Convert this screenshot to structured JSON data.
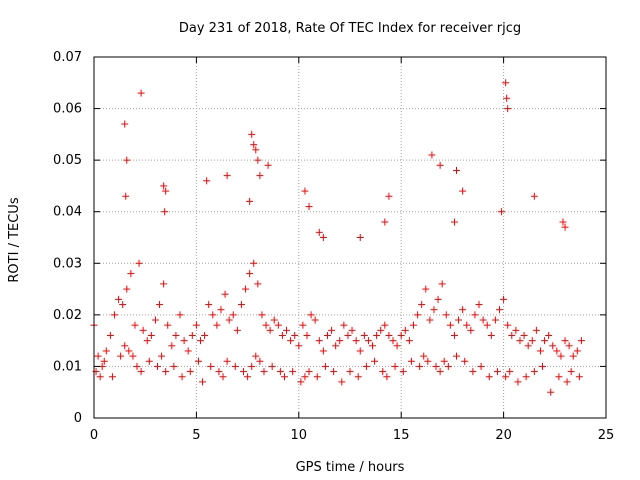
{
  "chart_data": {
    "type": "scatter",
    "title": "Day 231 of 2018, Rate Of TEC Index for receiver rjcg",
    "xlabel": "GPS time / hours",
    "ylabel": "ROTI / TECUs",
    "xlim": [
      0,
      25
    ],
    "ylim": [
      0,
      0.07
    ],
    "xticks": [
      0,
      5,
      10,
      15,
      20,
      25
    ],
    "xtick_labels": [
      "0",
      "5",
      "10",
      "15",
      "20",
      "25"
    ],
    "yticks": [
      0,
      0.01,
      0.02,
      0.03,
      0.04,
      0.05,
      0.06,
      0.07
    ],
    "ytick_labels": [
      "0",
      "0.01",
      "0.02",
      "0.03",
      "0.04",
      "0.05",
      "0.06",
      "0.07"
    ],
    "grid": true,
    "marker": "+",
    "color": "#ff0000",
    "series": [
      {
        "name": "ROTI",
        "x": [
          0.0,
          0.2,
          0.4,
          0.6,
          0.8,
          1.0,
          1.2,
          1.4,
          1.6,
          1.8,
          2.0,
          2.2,
          2.4,
          2.6,
          2.8,
          3.0,
          3.2,
          3.4,
          3.6,
          3.8,
          4.0,
          4.2,
          4.4,
          4.6,
          4.8,
          5.0,
          5.2,
          5.4,
          5.6,
          5.8,
          6.0,
          6.2,
          6.4,
          6.6,
          6.8,
          7.0,
          7.2,
          7.4,
          7.6,
          7.8,
          8.0,
          8.2,
          8.4,
          8.6,
          8.8,
          9.0,
          9.2,
          9.4,
          9.6,
          9.8,
          10.0,
          10.2,
          10.4,
          10.6,
          10.8,
          11.0,
          11.2,
          11.4,
          11.6,
          11.8,
          12.0,
          12.2,
          12.4,
          12.6,
          12.8,
          13.0,
          13.2,
          13.4,
          13.6,
          13.8,
          14.0,
          14.2,
          14.4,
          14.6,
          14.8,
          15.0,
          15.2,
          15.4,
          15.6,
          15.8,
          16.0,
          16.2,
          16.4,
          16.6,
          16.8,
          17.0,
          17.2,
          17.4,
          17.6,
          17.8,
          18.0,
          18.2,
          18.4,
          18.6,
          18.8,
          19.0,
          19.2,
          19.4,
          19.6,
          19.8,
          20.0,
          20.2,
          20.4,
          20.6,
          20.8,
          21.0,
          21.2,
          21.4,
          21.6,
          21.8,
          22.0,
          22.2,
          22.4,
          22.6,
          22.8,
          23.0,
          23.2,
          23.4,
          23.6,
          23.8,
          0.1,
          0.3,
          0.5,
          0.9,
          1.3,
          1.5,
          1.7,
          1.9,
          2.1,
          2.3,
          2.7,
          3.1,
          3.3,
          3.5,
          3.9,
          4.3,
          4.7,
          5.1,
          5.3,
          5.7,
          6.1,
          6.3,
          6.5,
          6.9,
          7.3,
          7.5,
          7.7,
          7.9,
          8.1,
          8.3,
          8.7,
          9.1,
          9.3,
          9.7,
          10.1,
          10.3,
          10.5,
          10.9,
          11.3,
          11.7,
          12.1,
          12.5,
          12.9,
          13.3,
          13.7,
          14.1,
          14.3,
          14.7,
          15.1,
          15.5,
          15.9,
          16.1,
          16.3,
          16.7,
          16.9,
          17.1,
          17.3,
          17.7,
          18.1,
          18.5,
          18.9,
          19.3,
          19.7,
          20.1,
          20.3,
          20.7,
          21.1,
          21.5,
          21.9,
          22.3,
          22.7,
          23.1,
          23.3,
          23.7,
          1.5,
          1.6,
          2.3,
          3.4,
          3.5,
          5.5,
          6.5,
          7.7,
          7.8,
          7.9,
          8.0,
          8.5,
          10.3,
          14.4,
          16.5,
          16.9,
          17.7,
          18.0,
          20.1,
          20.15,
          20.2,
          21.5,
          22.9,
          23.0,
          8.1,
          7.6,
          10.5,
          11.0,
          11.2,
          13.0,
          14.2,
          17.6,
          19.9,
          1.55,
          3.45
        ],
        "y": [
          0.018,
          0.012,
          0.01,
          0.013,
          0.016,
          0.02,
          0.023,
          0.022,
          0.025,
          0.028,
          0.018,
          0.03,
          0.017,
          0.015,
          0.016,
          0.019,
          0.022,
          0.026,
          0.018,
          0.014,
          0.016,
          0.02,
          0.015,
          0.013,
          0.016,
          0.018,
          0.015,
          0.016,
          0.022,
          0.02,
          0.018,
          0.021,
          0.024,
          0.019,
          0.02,
          0.017,
          0.022,
          0.025,
          0.028,
          0.03,
          0.026,
          0.02,
          0.018,
          0.017,
          0.019,
          0.018,
          0.016,
          0.017,
          0.015,
          0.016,
          0.014,
          0.018,
          0.016,
          0.02,
          0.019,
          0.015,
          0.013,
          0.016,
          0.017,
          0.014,
          0.015,
          0.018,
          0.016,
          0.017,
          0.015,
          0.013,
          0.016,
          0.015,
          0.014,
          0.016,
          0.017,
          0.018,
          0.016,
          0.015,
          0.014,
          0.016,
          0.017,
          0.015,
          0.018,
          0.02,
          0.022,
          0.025,
          0.019,
          0.021,
          0.023,
          0.026,
          0.02,
          0.018,
          0.016,
          0.019,
          0.021,
          0.018,
          0.017,
          0.02,
          0.022,
          0.019,
          0.018,
          0.016,
          0.019,
          0.021,
          0.023,
          0.018,
          0.016,
          0.017,
          0.015,
          0.016,
          0.014,
          0.015,
          0.017,
          0.013,
          0.015,
          0.016,
          0.014,
          0.013,
          0.012,
          0.015,
          0.014,
          0.012,
          0.013,
          0.015,
          0.009,
          0.008,
          0.011,
          0.008,
          0.012,
          0.014,
          0.013,
          0.012,
          0.01,
          0.009,
          0.011,
          0.01,
          0.012,
          0.009,
          0.01,
          0.008,
          0.009,
          0.011,
          0.007,
          0.01,
          0.009,
          0.008,
          0.011,
          0.01,
          0.009,
          0.008,
          0.01,
          0.012,
          0.011,
          0.009,
          0.01,
          0.009,
          0.008,
          0.009,
          0.007,
          0.008,
          0.009,
          0.008,
          0.01,
          0.009,
          0.007,
          0.009,
          0.008,
          0.01,
          0.011,
          0.009,
          0.008,
          0.01,
          0.009,
          0.011,
          0.01,
          0.012,
          0.011,
          0.01,
          0.009,
          0.011,
          0.01,
          0.012,
          0.011,
          0.009,
          0.01,
          0.008,
          0.009,
          0.008,
          0.009,
          0.007,
          0.008,
          0.009,
          0.01,
          0.005,
          0.008,
          0.007,
          0.009,
          0.008,
          0.057,
          0.05,
          0.063,
          0.045,
          0.044,
          0.046,
          0.047,
          0.055,
          0.053,
          0.052,
          0.05,
          0.049,
          0.044,
          0.043,
          0.051,
          0.049,
          0.048,
          0.044,
          0.065,
          0.062,
          0.06,
          0.043,
          0.038,
          0.037,
          0.047,
          0.042,
          0.041,
          0.036,
          0.035,
          0.035,
          0.038,
          0.038,
          0.04,
          0.043,
          0.04
        ]
      }
    ]
  }
}
